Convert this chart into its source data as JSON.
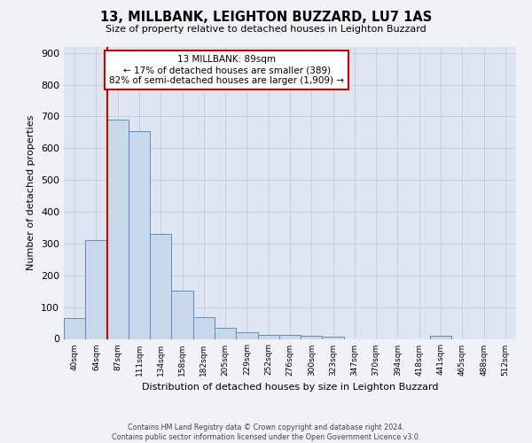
{
  "title": "13, MILLBANK, LEIGHTON BUZZARD, LU7 1AS",
  "subtitle": "Size of property relative to detached houses in Leighton Buzzard",
  "xlabel": "Distribution of detached houses by size in Leighton Buzzard",
  "ylabel": "Number of detached properties",
  "bin_labels": [
    "40sqm",
    "64sqm",
    "87sqm",
    "111sqm",
    "134sqm",
    "158sqm",
    "182sqm",
    "205sqm",
    "229sqm",
    "252sqm",
    "276sqm",
    "300sqm",
    "323sqm",
    "347sqm",
    "370sqm",
    "394sqm",
    "418sqm",
    "441sqm",
    "465sqm",
    "488sqm",
    "512sqm"
  ],
  "bar_heights": [
    65,
    310,
    690,
    655,
    330,
    152,
    68,
    35,
    22,
    12,
    12,
    10,
    8,
    0,
    0,
    0,
    0,
    10,
    0,
    0,
    0
  ],
  "bar_color": "#c8d8ea",
  "bar_edge_color": "#5a8fc0",
  "property_line_label": "13 MILLBANK: 89sqm",
  "annotation_line1": "← 17% of detached houses are smaller (389)",
  "annotation_line2": "82% of semi-detached houses are larger (1,909) →",
  "annotation_box_color": "#ffffff",
  "annotation_box_edge_color": "#cc0000",
  "red_line_color": "#cc0000",
  "ylim": [
    0,
    920
  ],
  "yticks": [
    0,
    100,
    200,
    300,
    400,
    500,
    600,
    700,
    800,
    900
  ],
  "grid_color": "#c0ccd8",
  "background_color": "#dde6f0",
  "fig_background_color": "#f0f2f8",
  "footer_line1": "Contains HM Land Registry data © Crown copyright and database right 2024.",
  "footer_line2": "Contains public sector information licensed under the Open Government Licence v3.0."
}
